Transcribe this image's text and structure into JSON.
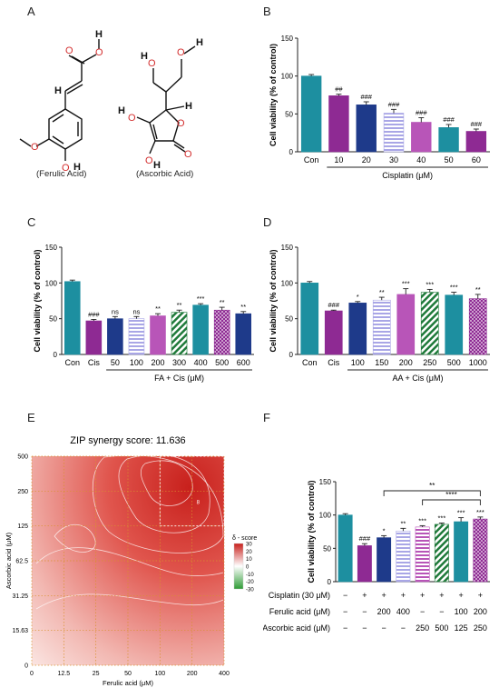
{
  "panels": {
    "A": "A",
    "B": "B",
    "C": "C",
    "D": "D",
    "E": "E",
    "F": "F"
  },
  "molecules": {
    "ferulic_caption": "(Ferulic Acid)",
    "ascorbic_caption": "(Ascorbic Acid)"
  },
  "colors": {
    "teal": "#1d8fa0",
    "purple": "#8e2a93",
    "navy": "#1e3a8a",
    "lavender": "#a9a6e6",
    "pink": "#b855b8",
    "green": "#1f7a3a",
    "heat_red": "#d63a34"
  },
  "chart_data": [
    {
      "id": "B",
      "type": "bar",
      "ylabel": "Cell viability (% of control)",
      "ylim": [
        0,
        150
      ],
      "yticks": [
        0,
        50,
        100,
        150
      ],
      "categories": [
        "Con",
        "10",
        "20",
        "30",
        "40",
        "50",
        "60"
      ],
      "values": [
        100,
        74,
        62,
        51,
        39,
        32,
        27
      ],
      "errors": [
        2,
        2,
        4,
        5,
        6,
        4,
        3
      ],
      "signif": [
        "",
        "##",
        "###",
        "###",
        "###",
        "###",
        "###"
      ],
      "group_label": "Cisplatin (μM)",
      "group_range": [
        1,
        6
      ],
      "colors": [
        "#1d8fa0",
        "#8e2a93",
        "#1e3a8a",
        "#a9a6e6",
        "#b855b8",
        "#1d8fa0",
        "#8e2a93"
      ],
      "patterns": [
        "solid",
        "solid",
        "solid",
        "hstripe",
        "solid",
        "solid",
        "solid"
      ]
    },
    {
      "id": "C",
      "type": "bar",
      "ylabel": "Cell viability (% of control)",
      "ylim": [
        0,
        150
      ],
      "yticks": [
        0,
        50,
        100,
        150
      ],
      "categories": [
        "Con",
        "Cis",
        "50",
        "100",
        "200",
        "300",
        "400",
        "500",
        "600"
      ],
      "values": [
        102,
        47,
        50,
        50,
        54,
        59,
        69,
        62,
        57
      ],
      "errors": [
        2,
        2,
        3,
        3,
        3,
        3,
        2,
        4,
        3
      ],
      "signif": [
        "",
        "###",
        "ns",
        "ns",
        "**",
        "**",
        "***",
        "**",
        "**"
      ],
      "group_label": "FA + Cis (μM)",
      "group_range": [
        2,
        8
      ],
      "colors": [
        "#1d8fa0",
        "#8e2a93",
        "#1e3a8a",
        "#a9a6e6",
        "#b855b8",
        "#1f7a3a",
        "#1d8fa0",
        "#8e2a93",
        "#1e3a8a"
      ],
      "patterns": [
        "solid",
        "solid",
        "solid",
        "hstripe",
        "solid",
        "dstripe",
        "solid",
        "checker",
        "solid"
      ]
    },
    {
      "id": "D",
      "type": "bar",
      "ylabel": "Cell viability (% of control)",
      "ylim": [
        0,
        150
      ],
      "yticks": [
        0,
        50,
        100,
        150
      ],
      "categories": [
        "Con",
        "Cis",
        "100",
        "150",
        "200",
        "250",
        "500",
        "1000"
      ],
      "values": [
        100,
        61,
        72,
        76,
        84,
        87,
        83,
        78
      ],
      "errors": [
        2,
        1,
        2,
        4,
        8,
        4,
        4,
        6
      ],
      "signif": [
        "",
        "###",
        "*",
        "**",
        "***",
        "***",
        "***",
        "**"
      ],
      "group_label": "AA + Cis (μM)",
      "group_range": [
        2,
        7
      ],
      "colors": [
        "#1d8fa0",
        "#8e2a93",
        "#1e3a8a",
        "#a9a6e6",
        "#b855b8",
        "#1f7a3a",
        "#1d8fa0",
        "#8e2a93"
      ],
      "patterns": [
        "solid",
        "solid",
        "solid",
        "hstripe",
        "solid",
        "dstripe",
        "solid",
        "checker"
      ]
    },
    {
      "id": "E",
      "type": "heatmap",
      "title": "ZIP synergy score: 11.636",
      "xlabel": "Ferulic acid (μM)",
      "ylabel": "Ascorbic acid (μM)",
      "xticks": [
        "0",
        "12.5",
        "25",
        "50",
        "100",
        "200",
        "400"
      ],
      "yticks": [
        "0",
        "15.63",
        "31.25",
        "62.5",
        "125",
        "250",
        "500"
      ],
      "legend_title": "δ - score",
      "legend_ticks": [
        "30",
        "20",
        "10",
        "0",
        "-10",
        "-20",
        "-30"
      ],
      "peak_label": "8"
    },
    {
      "id": "F",
      "type": "bar",
      "ylabel": "Cell viability (% of control)",
      "ylim": [
        0,
        150
      ],
      "yticks": [
        0,
        50,
        100,
        150
      ],
      "values": [
        100,
        54,
        66,
        76,
        82,
        86,
        90,
        94
      ],
      "errors": [
        2,
        3,
        3,
        4,
        2,
        2,
        6,
        3
      ],
      "signif": [
        "",
        "###",
        "*",
        "**",
        "***",
        "***",
        "***",
        "***"
      ],
      "colors": [
        "#1d8fa0",
        "#8e2a93",
        "#1e3a8a",
        "#a9a6e6",
        "#b855b8",
        "#1f7a3a",
        "#1d8fa0",
        "#8e2a93"
      ],
      "patterns": [
        "solid",
        "solid",
        "solid",
        "hstripe",
        "hstripe",
        "dstripe",
        "solid",
        "checker"
      ],
      "brackets": [
        {
          "from": 2,
          "to": 7,
          "label": "**"
        },
        {
          "from": 4,
          "to": 7,
          "label": "****"
        }
      ],
      "table": [
        {
          "label": "Cisplatin (30 μM)",
          "cells": [
            "−",
            "+",
            "+",
            "+",
            "+",
            "+",
            "+",
            "+"
          ]
        },
        {
          "label": "Ferulic acid (μM)",
          "cells": [
            "−",
            "−",
            "200",
            "400",
            "−",
            "−",
            "100",
            "200"
          ]
        },
        {
          "label": "Ascorbic acid (μM)",
          "cells": [
            "−",
            "−",
            "−",
            "−",
            "250",
            "500",
            "125",
            "250"
          ]
        }
      ]
    }
  ]
}
